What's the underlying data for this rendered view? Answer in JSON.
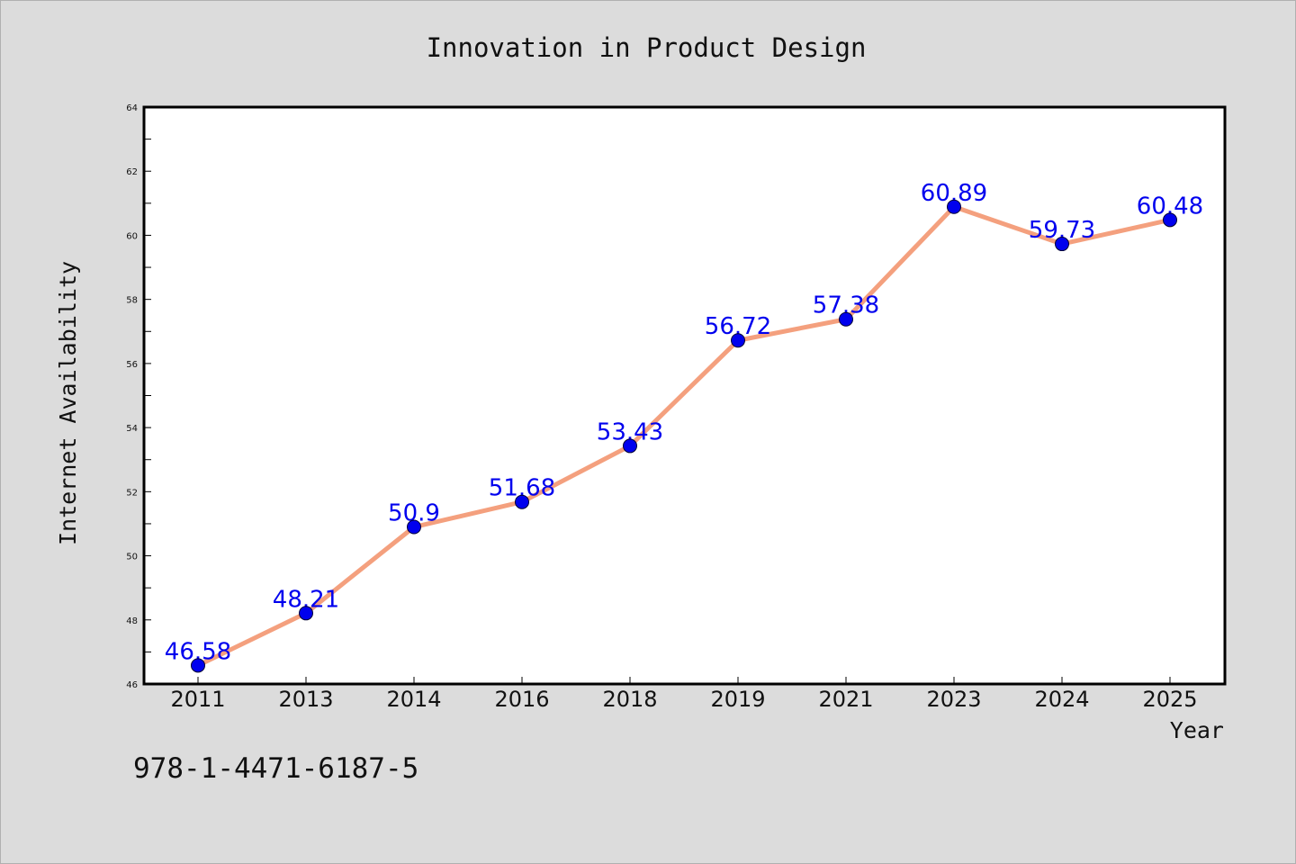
{
  "chart_data": {
    "type": "line",
    "title": "Innovation in Product Design",
    "xlabel": "Year",
    "ylabel": "Internet Availability",
    "categories": [
      "2011",
      "2013",
      "2014",
      "2016",
      "2018",
      "2019",
      "2021",
      "2023",
      "2024",
      "2025"
    ],
    "values": [
      46.58,
      48.21,
      50.9,
      51.68,
      53.43,
      56.72,
      57.38,
      60.89,
      59.73,
      60.48
    ],
    "data_labels": [
      "46.58",
      "48.21",
      "50.9",
      "51.68",
      "53.43",
      "56.72",
      "57.38",
      "60.89",
      "59.73",
      "60.48"
    ],
    "ylim": [
      46,
      64
    ],
    "yticks": [
      "46",
      "48",
      "50",
      "52",
      "54",
      "56",
      "58",
      "60",
      "62",
      "64"
    ],
    "grid": false,
    "line_color": "#f4a07e",
    "marker_color": "#0000ee",
    "label_color": "#0000ee"
  },
  "footer": {
    "isbn": "978-1-4471-6187-5"
  }
}
